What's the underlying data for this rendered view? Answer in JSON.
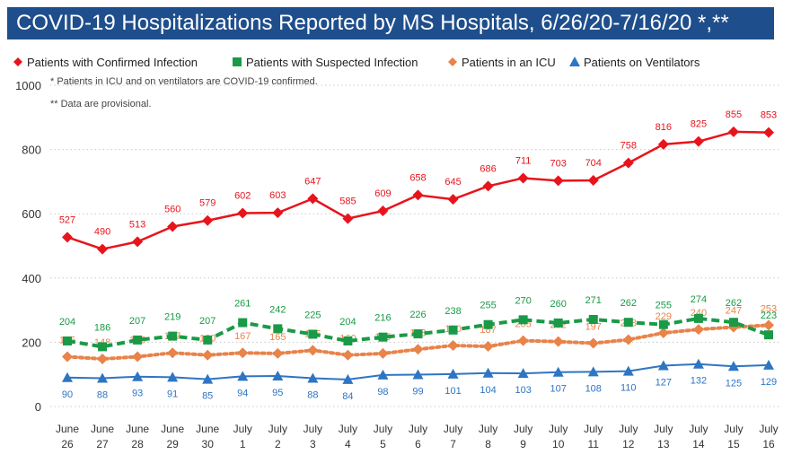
{
  "title": "COVID-19 Hospitalizations Reported by MS Hospitals, 6/26/20-7/16/20 *,**",
  "notes": [
    "* Patients in ICU and on ventilators are COVID-19 confirmed.",
    "** Data are provisional."
  ],
  "colors": {
    "title_bg": "#1f4e8c",
    "confirmed": "#e8141c",
    "suspected": "#1a9a46",
    "icu": "#e8834a",
    "ventilators": "#2e75c3"
  },
  "chart_data": {
    "type": "line",
    "categories": [
      [
        "June",
        "26"
      ],
      [
        "June",
        "27"
      ],
      [
        "June",
        "28"
      ],
      [
        "June",
        "29"
      ],
      [
        "June",
        "30"
      ],
      [
        "July",
        "1"
      ],
      [
        "July",
        "2"
      ],
      [
        "July",
        "3"
      ],
      [
        "July",
        "4"
      ],
      [
        "July",
        "5"
      ],
      [
        "July",
        "6"
      ],
      [
        "July",
        "7"
      ],
      [
        "July",
        "8"
      ],
      [
        "July",
        "9"
      ],
      [
        "July",
        "10"
      ],
      [
        "July",
        "11"
      ],
      [
        "July",
        "12"
      ],
      [
        "July",
        "13"
      ],
      [
        "July",
        "14"
      ],
      [
        "July",
        "15"
      ],
      [
        "July",
        "16"
      ]
    ],
    "ylim": [
      0,
      1000
    ],
    "yticks": [
      0,
      200,
      400,
      600,
      800,
      1000
    ],
    "grid": "horizontal-dotted",
    "legend_position": "top",
    "series": [
      {
        "name": "Patients with Confirmed Infection",
        "key": "confirmed",
        "marker": "diamond",
        "line": "solid",
        "values": [
          527,
          490,
          513,
          560,
          579,
          602,
          603,
          647,
          585,
          609,
          658,
          645,
          686,
          711,
          703,
          704,
          758,
          816,
          825,
          855,
          853
        ],
        "labels": [
          "527",
          "490",
          "513",
          "560",
          "579",
          "602",
          "603",
          "647",
          "585",
          "609",
          "658",
          "645",
          "686",
          "711",
          "703",
          "704",
          "758",
          "816",
          "825",
          "855",
          "853"
        ]
      },
      {
        "name": "Patients with Suspected Infection",
        "key": "suspected",
        "marker": "square",
        "line": "dashed",
        "values": [
          204,
          186,
          207,
          219,
          207,
          261,
          242,
          225,
          204,
          216,
          226,
          238,
          255,
          270,
          260,
          271,
          262,
          255,
          274,
          262,
          223
        ],
        "labels": [
          "204",
          "186",
          "207",
          "219",
          "207",
          "261",
          "242",
          "225",
          "204",
          "216",
          "226",
          "238",
          "255",
          "270",
          "260",
          "271",
          "262",
          "255",
          "274",
          "262",
          "223"
        ]
      },
      {
        "name": "Patients in an ICU",
        "key": "icu",
        "marker": "diamond",
        "line": "dotted",
        "values": [
          155,
          148,
          155,
          167,
          160,
          167,
          165,
          175,
          160,
          165,
          178,
          190,
          187,
          205,
          202,
          197,
          208,
          229,
          240,
          247,
          253
        ],
        "labels": [
          "155",
          "148",
          "155",
          "167",
          "160",
          "167",
          "165",
          "175",
          "160",
          "165",
          "178",
          "190",
          "187",
          "205",
          "202",
          "197",
          "208",
          "229",
          "240",
          "247",
          "253"
        ]
      },
      {
        "name": "Patients on Ventilators",
        "key": "ventilators",
        "marker": "triangle",
        "line": "solid",
        "values": [
          90,
          88,
          93,
          91,
          85,
          94,
          95,
          88,
          84,
          98,
          99,
          101,
          104,
          103,
          107,
          108,
          110,
          127,
          132,
          125,
          129
        ],
        "labels": [
          "90",
          "88",
          "93",
          "91",
          "85",
          "94",
          "95",
          "88",
          "84",
          "98",
          "99",
          "101",
          "104",
          "103",
          "107",
          "108",
          "110",
          "127",
          "132",
          "125",
          "129"
        ]
      }
    ]
  }
}
